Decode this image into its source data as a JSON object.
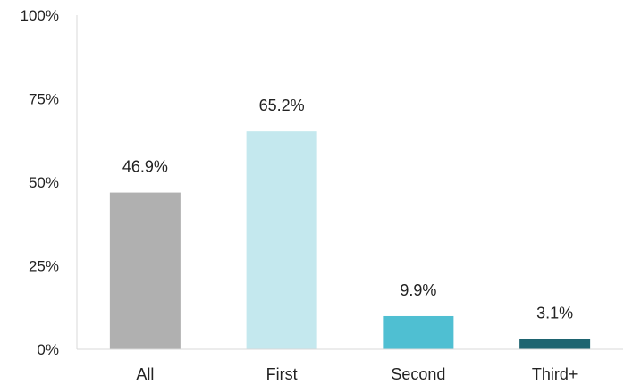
{
  "chart_data": {
    "type": "bar",
    "title": "",
    "xlabel": "",
    "ylabel": "",
    "categories": [
      "All",
      "First",
      "Second",
      "Third+"
    ],
    "values": [
      46.9,
      65.2,
      9.9,
      3.1
    ],
    "value_labels": [
      "46.9%",
      "65.2%",
      "9.9%",
      "3.1%"
    ],
    "colors": [
      "#b0b0b0",
      "#c4e8ee",
      "#4fbfd2",
      "#1e6470"
    ],
    "ylim": [
      0,
      100
    ],
    "yticks": [
      0,
      25,
      50,
      75,
      100
    ],
    "ytick_labels": [
      "0%",
      "25%",
      "50%",
      "75%",
      "100%"
    ],
    "grid": false,
    "legend": "none"
  }
}
